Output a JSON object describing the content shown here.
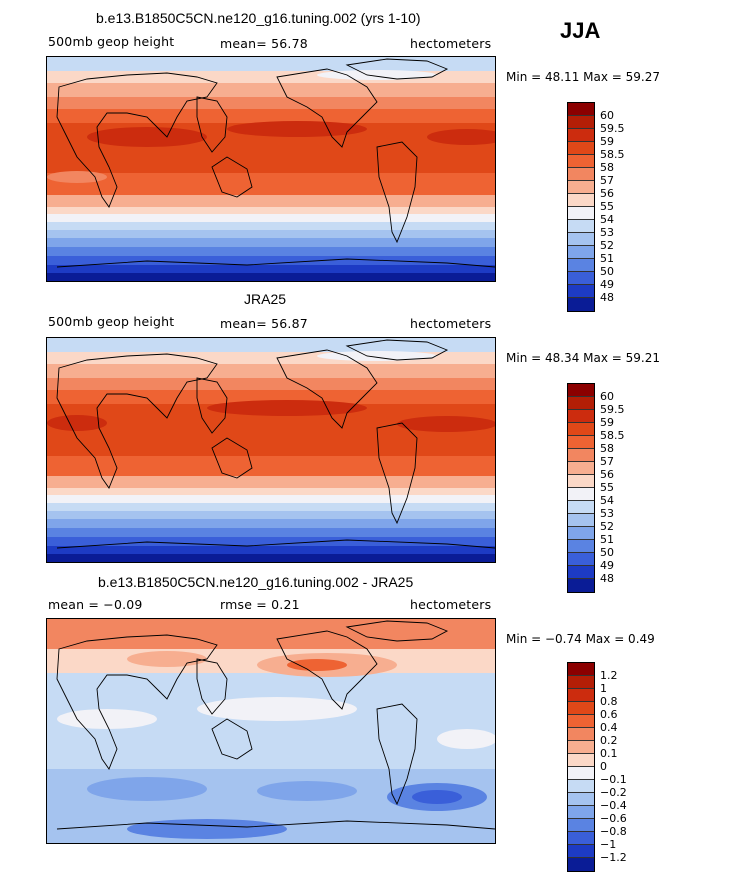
{
  "season": "JJA",
  "panels": [
    {
      "title": "b.e13.B1850C5CN.ne120_g16.tuning.002 (yrs 1-10)",
      "left_label": "500mb geop height",
      "center_label": "mean=  56.78",
      "units": "hectometers",
      "minmax": "Min =  48.11 Max =  59.27",
      "levels": [
        "60",
        "59.5",
        "59",
        "58.5",
        "58",
        "57",
        "56",
        "55",
        "54",
        "53",
        "52",
        "51",
        "50",
        "49",
        "48"
      ],
      "colors": [
        "#8B0000",
        "#B31E06",
        "#CC2C0E",
        "#E04818",
        "#EE6333",
        "#F28660",
        "#F7AE90",
        "#FBD8C7",
        "#F2F2F7",
        "#C6DBF4",
        "#A5C3EF",
        "#7FA5EA",
        "#5A83E2",
        "#3A5FD9",
        "#1D3BC4",
        "#0A1C96"
      ]
    },
    {
      "title": "JRA25",
      "left_label": "500mb geop height",
      "center_label": "mean=  56.87",
      "units": "hectometers",
      "minmax": "Min =  48.34 Max =  59.21",
      "levels": [
        "60",
        "59.5",
        "59",
        "58.5",
        "58",
        "57",
        "56",
        "55",
        "54",
        "53",
        "52",
        "51",
        "50",
        "49",
        "48"
      ],
      "colors": [
        "#8B0000",
        "#B31E06",
        "#CC2C0E",
        "#E04818",
        "#EE6333",
        "#F28660",
        "#F7AE90",
        "#FBD8C7",
        "#F2F2F7",
        "#C6DBF4",
        "#A5C3EF",
        "#7FA5EA",
        "#5A83E2",
        "#3A5FD9",
        "#1D3BC4",
        "#0A1C96"
      ]
    },
    {
      "title": "b.e13.B1850C5CN.ne120_g16.tuning.002 - JRA25",
      "left_label": "mean =  −0.09",
      "center_label": "rmse =    0.21",
      "units": "hectometers",
      "minmax": "Min =  −0.74 Max =    0.49",
      "levels": [
        "1.2",
        "1",
        "0.8",
        "0.6",
        "0.4",
        "0.2",
        "0.1",
        "0",
        "−0.1",
        "−0.2",
        "−0.4",
        "−0.6",
        "−0.8",
        "−1",
        "−1.2"
      ],
      "colors": [
        "#8B0000",
        "#B31E06",
        "#CC2C0E",
        "#E04818",
        "#EE6333",
        "#F28660",
        "#F7AE90",
        "#FBD8C7",
        "#F2F2F7",
        "#C6DBF4",
        "#A5C3EF",
        "#7FA5EA",
        "#5A83E2",
        "#3A5FD9",
        "#1D3BC4",
        "#0A1C96"
      ]
    }
  ]
}
